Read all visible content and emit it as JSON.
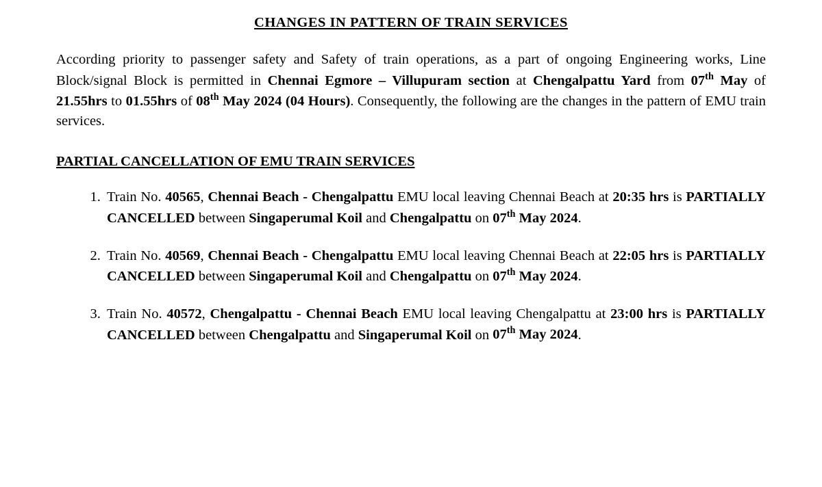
{
  "main_title": "CHANGES IN PATTERN OF TRAIN SERVICES",
  "intro": {
    "text1": "According priority to passenger safety and Safety of train operations, as a part of ongoing Engineering works, Line Block/signal Block is permitted in ",
    "section": "Chennai Egmore – Villupuram section",
    "text2": " at ",
    "yard": "Chengalpattu Yard",
    "text3": " from ",
    "date1_day": "07",
    "date1_sup": "th",
    "date1_month": " May",
    "text4": " of ",
    "time1": "21.55hrs",
    "text5": " to ",
    "time2": "01.55hrs",
    "text6": " of ",
    "date2_day": "08",
    "date2_sup": "th",
    "date2_rest": " May 2024 (04 Hours)",
    "text7": ". Consequently, the following are the changes in the pattern of EMU train services."
  },
  "section_title": "PARTIAL CANCELLATION OF EMU TRAIN SERVICES",
  "items": [
    {
      "prefix": "Train No. ",
      "trainno": "40565",
      "sep1": ", ",
      "route": "Chennai Beach - Chengalpattu",
      "mid1": " EMU local leaving Chennai Beach at ",
      "time": "20:35 hrs",
      "mid2": " is ",
      "status": "PARTIALLY CANCELLED",
      "mid3": " between ",
      "from": "Singaperumal Koil",
      "mid4": " and ",
      "to": "Chengalpattu",
      "mid5": " on ",
      "date_day": "07",
      "date_sup": "th",
      "date_rest": " May 2024",
      "end": "."
    },
    {
      "prefix": "Train No. ",
      "trainno": "40569",
      "sep1": ", ",
      "route": "Chennai Beach - Chengalpattu",
      "mid1": " EMU local leaving Chennai Beach at ",
      "time": "22:05 hrs",
      "mid2": " is ",
      "status": "PARTIALLY CANCELLED",
      "mid3": " between ",
      "from": "Singaperumal Koil",
      "mid4": " and ",
      "to": "Chengalpattu",
      "mid5": " on ",
      "date_day": "07",
      "date_sup": "th",
      "date_rest": " May 2024",
      "end": "."
    },
    {
      "prefix": "Train No. ",
      "trainno": "40572",
      "sep1": ", ",
      "route": "Chengalpattu - Chennai Beach",
      "mid1": " EMU local leaving Chengalpattu at ",
      "time": "23:00 hrs",
      "mid2": " is ",
      "status": "PARTIALLY CANCELLED",
      "mid3": " between ",
      "from": "Chengalpattu",
      "mid4": " and ",
      "to": "Singaperumal Koil",
      "mid5": " on ",
      "date_day": "07",
      "date_sup": "th",
      "date_rest": " May 2024",
      "end": "."
    }
  ]
}
